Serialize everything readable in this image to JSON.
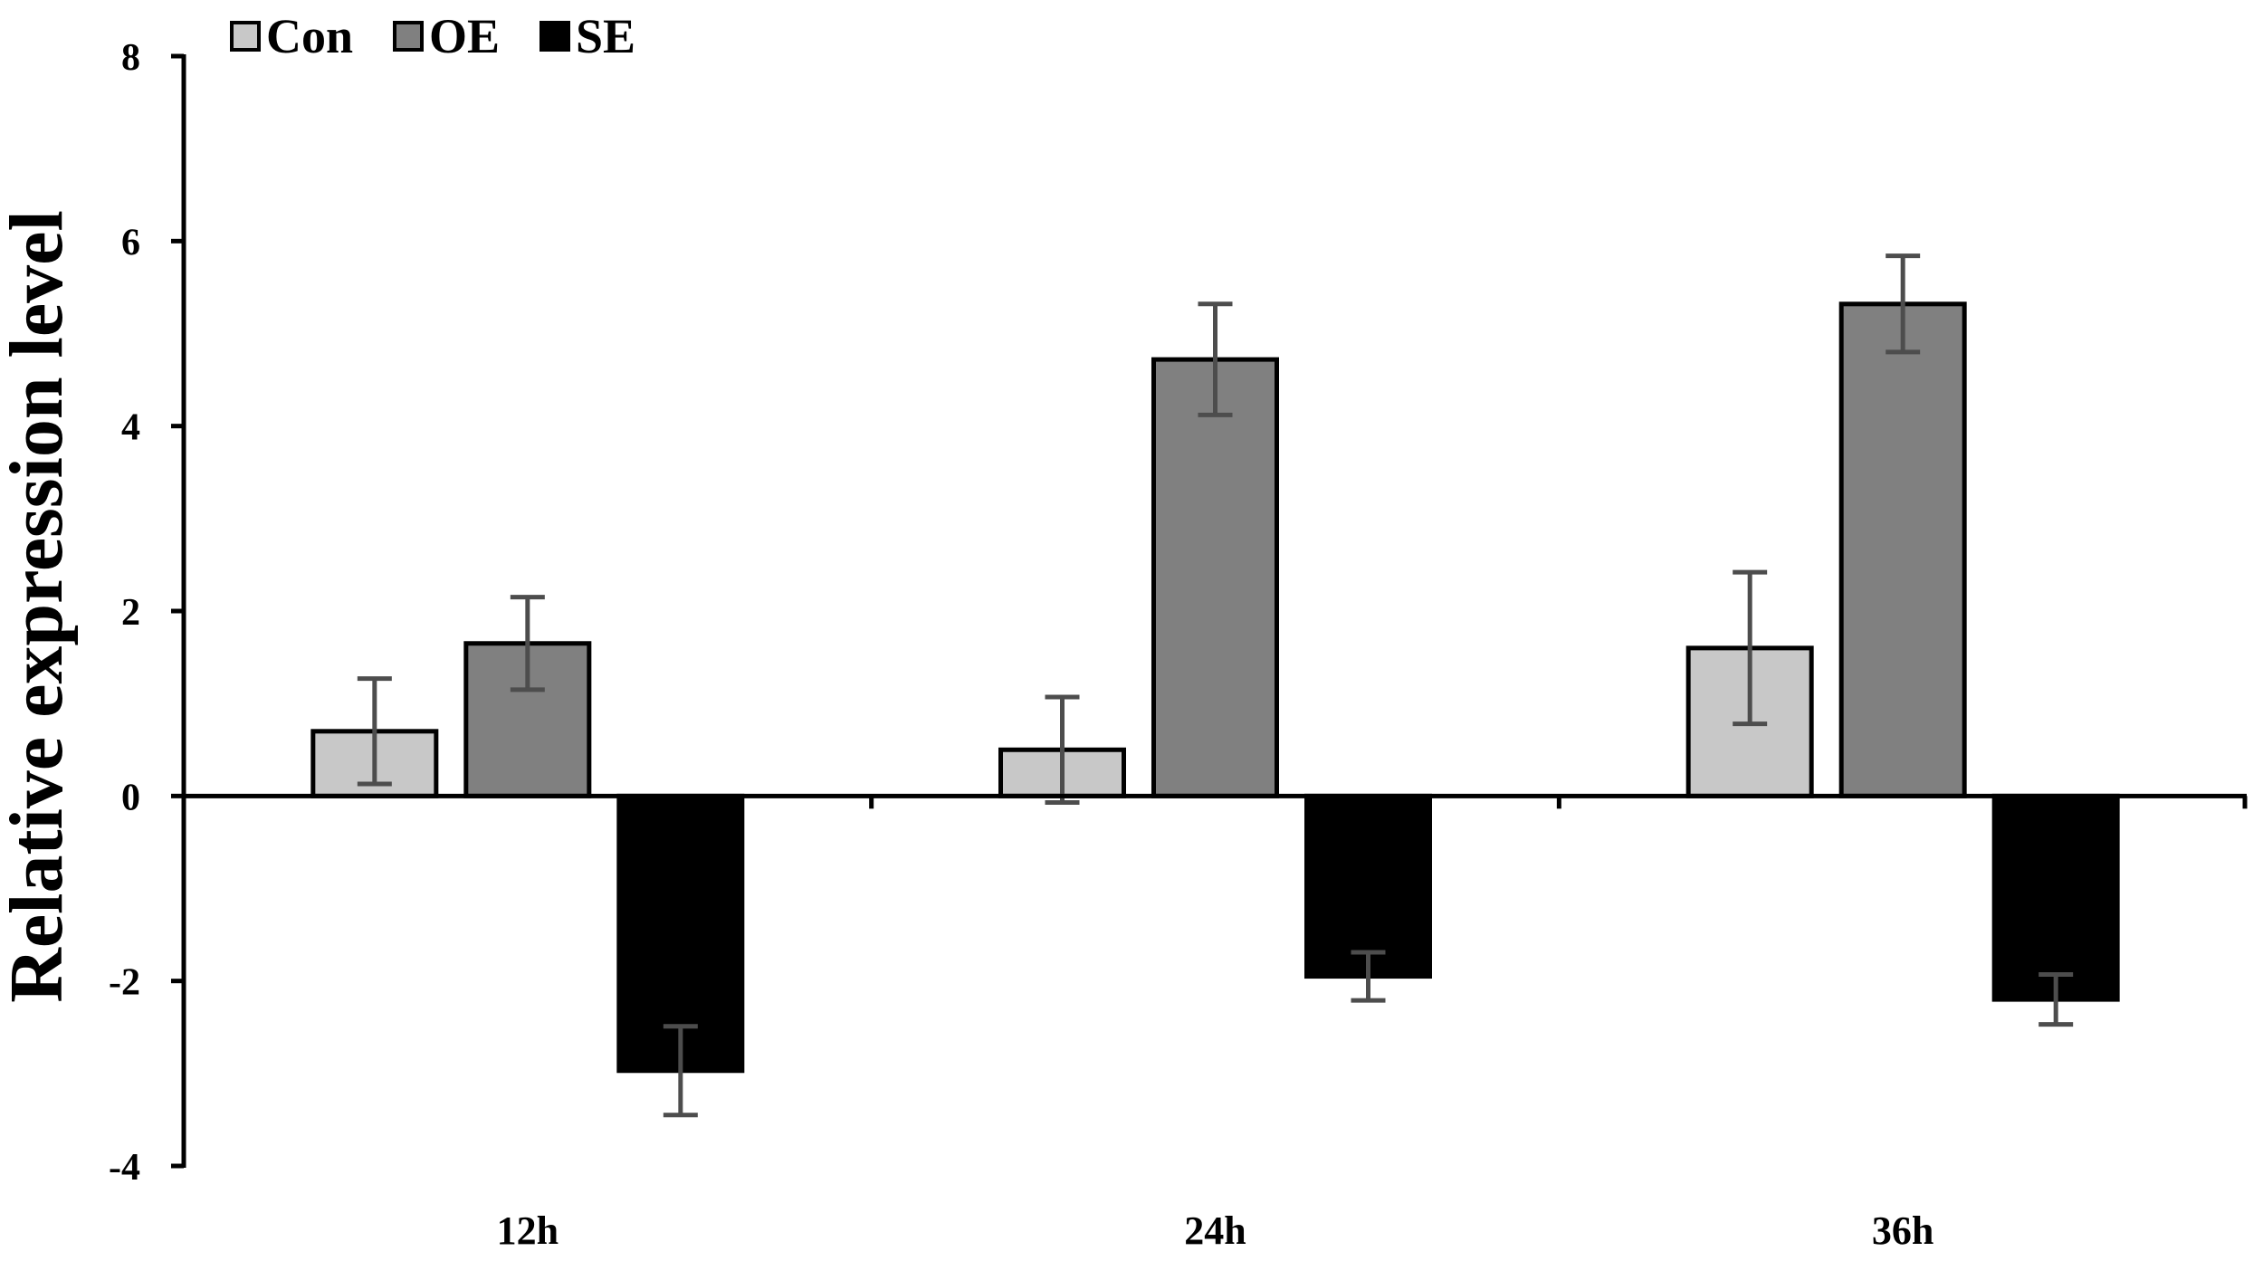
{
  "chart_data": {
    "type": "bar",
    "title": "",
    "xlabel": "",
    "ylabel": "Relative expression level",
    "ylim": [
      -4,
      8
    ],
    "yticks": [
      -4,
      -2,
      0,
      2,
      4,
      6,
      8
    ],
    "grid": false,
    "legend_position": "top-left",
    "categories": [
      "12h",
      "24h",
      "36h"
    ],
    "series": [
      {
        "name": "Con",
        "color": "#c8c8c8",
        "values": [
          0.7,
          0.5,
          1.6
        ],
        "errors": [
          0.57,
          0.57,
          0.82
        ]
      },
      {
        "name": "OE",
        "color": "#808080",
        "values": [
          1.65,
          4.72,
          5.32
        ],
        "errors": [
          0.5,
          0.6,
          0.52
        ]
      },
      {
        "name": "SE",
        "color": "#000000",
        "values": [
          -2.97,
          -1.95,
          -2.2
        ],
        "errors": [
          0.48,
          0.26,
          0.27
        ]
      }
    ]
  }
}
